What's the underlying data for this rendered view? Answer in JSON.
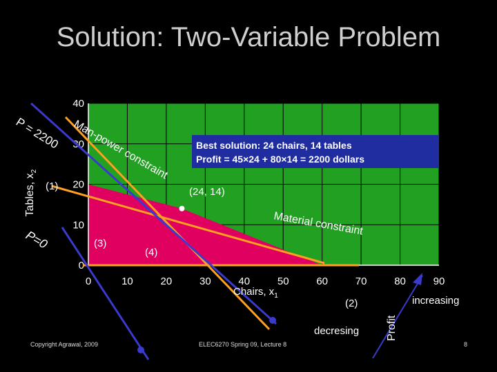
{
  "slide": {
    "title": "Solution: Two-Variable Problem",
    "footer_left": "Copyright Agrawal, 2009",
    "footer_center": "ELEC6270 Spring 09, Lecture 8",
    "page_number": "8"
  },
  "colors": {
    "plot_bg": "#22a022",
    "feasible": "#e0005f",
    "constraint_line": "#ffa020",
    "profit_line": "#3a3acc",
    "callout_bg": "#1f2da0"
  },
  "annotations": {
    "callout_line1": "Best solution: 24 chairs, 14 tables",
    "callout_line2": "Profit = 45×24 + 80×14 = 2200 dollars",
    "point_label": "(24, 14)",
    "man_power": "Man-power constraint",
    "material": "Material constraint",
    "c1": "(1)",
    "c2": "(2)",
    "c3": "(3)",
    "c4": "(4)",
    "p2200": "P = 2200",
    "p0": "P=0",
    "decresing": "decresing",
    "increasing": "increasing",
    "profit": "Profit"
  },
  "chart_data": {
    "type": "line",
    "xlabel_text": "Chairs, x",
    "xlabel_sub": "1",
    "ylabel_text": "Tables, x",
    "ylabel_sub": "2",
    "xlim": [
      0,
      90
    ],
    "ylim": [
      0,
      40
    ],
    "x_ticks": [
      0,
      10,
      20,
      30,
      40,
      50,
      60,
      70,
      80,
      90
    ],
    "y_ticks": [
      0,
      10,
      20,
      30,
      40
    ],
    "grid": true,
    "series": [
      {
        "name": "Man-power constraint",
        "x": [
          0,
          30
        ],
        "y": [
          34,
          10
        ]
      },
      {
        "name": "Material constraint",
        "x": [
          0,
          68
        ],
        "y": [
          20,
          6.8
        ]
      }
    ],
    "feasible_region": {
      "x": [
        0,
        0,
        24,
        60,
        0
      ],
      "y": [
        0,
        20,
        14,
        0,
        0
      ]
    },
    "optimum": {
      "x": 24,
      "y": 14
    }
  }
}
